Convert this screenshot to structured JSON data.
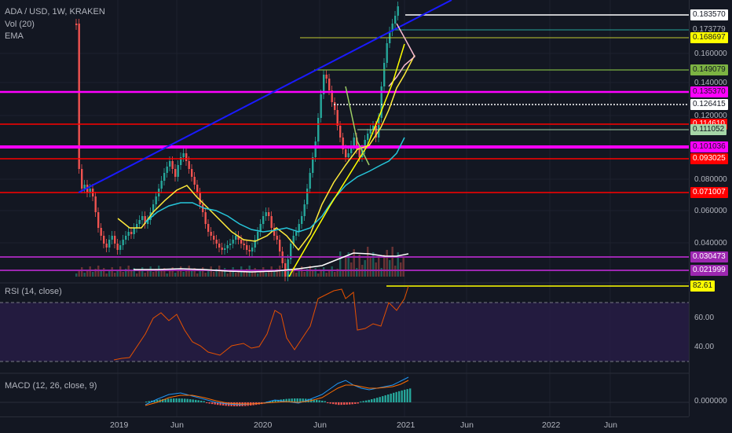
{
  "header": {
    "symbol_line": "ADA / USD, 1W, KRAKEN",
    "vol_label": "Vol (20)",
    "ema_label": "EMA"
  },
  "price_axis": {
    "ticks": [
      "0.160000",
      "0.140000",
      "0.120000",
      "0.080000",
      "0.060000",
      "0.040000"
    ],
    "tags": [
      {
        "label": "0.183570",
        "bg": "#ffffff",
        "fg": "#131722"
      },
      {
        "label": "0.173779",
        "bg": "#131722",
        "fg": "#b2b5be"
      },
      {
        "label": "0.168697",
        "bg": "#ffff00",
        "fg": "#131722"
      },
      {
        "label": "0.149079",
        "bg": "#7cb342",
        "fg": "#131722"
      },
      {
        "label": "0.135370",
        "bg": "#ff00ff",
        "fg": "#131722"
      },
      {
        "label": "0.126415",
        "bg": "#ffffff",
        "fg": "#131722"
      },
      {
        "label": "0.114610",
        "bg": "#ff0000",
        "fg": "#ffffff"
      },
      {
        "label": "0.111052",
        "bg": "#a5d6a7",
        "fg": "#131722"
      },
      {
        "label": "0.101036",
        "bg": "#ff00ff",
        "fg": "#131722"
      },
      {
        "label": "0.093025",
        "bg": "#ff0000",
        "fg": "#ffffff"
      },
      {
        "label": "0.071007",
        "bg": "#ff0000",
        "fg": "#ffffff"
      },
      {
        "label": "0.030473",
        "bg": "#9c27b0",
        "fg": "#ffffff"
      },
      {
        "label": "0.021999",
        "bg": "#9c27b0",
        "fg": "#ffffff"
      }
    ]
  },
  "rsi": {
    "label": "RSI (14, close)",
    "ticks": [
      "60.00",
      "40.00"
    ],
    "current": "82.61"
  },
  "macd": {
    "label": "MACD (12, 26, close, 9)",
    "tick": "0.000000"
  },
  "time_axis": [
    "2019",
    "Jun",
    "2020",
    "Jun",
    "2021",
    "Jun",
    "2022",
    "Jun"
  ],
  "colors": {
    "background": "#131722",
    "candle_up": "#26a69a",
    "candle_down": "#ef5350",
    "ema_yellow": "#ffeb3b",
    "ema_cyan": "#26c6da",
    "ema_pink": "#f8bbd0",
    "trendline": "#1a1aff",
    "rsi_line": "#e65100",
    "macd_line": "#2196f3"
  },
  "drawing_tools": [
    "ascending-trendline",
    "horizontal-levels",
    "rsi-band"
  ]
}
